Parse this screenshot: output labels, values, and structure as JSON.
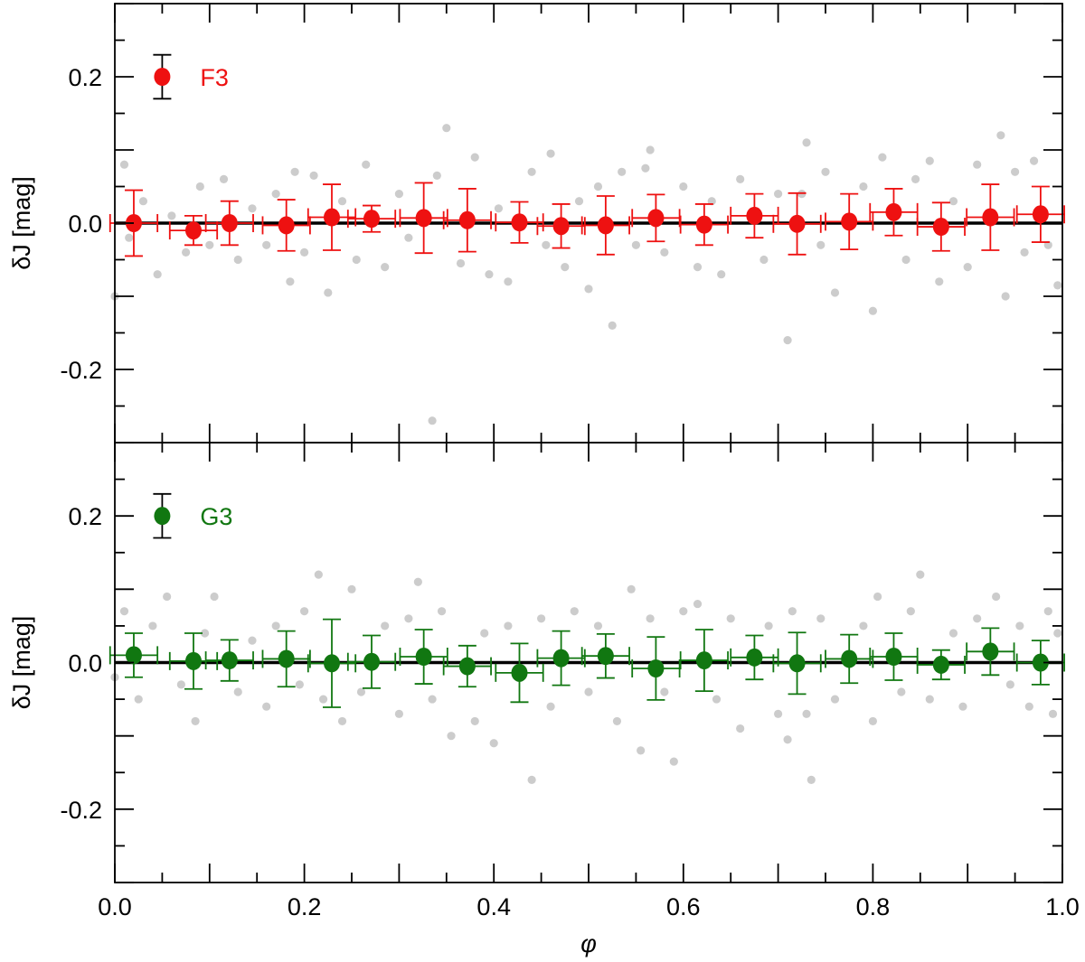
{
  "chart_data": [
    {
      "type": "scatter",
      "panel": "top",
      "ylabel": "δJ [mag]",
      "xlim": [
        0.0,
        1.0
      ],
      "ylim": [
        -0.3,
        0.3
      ],
      "yticks": [
        0.2,
        0.0,
        -0.2
      ],
      "ytick_labels": [
        "0.2",
        "0.0",
        "-0.2"
      ],
      "grid": false,
      "legend": {
        "position": "top-left",
        "label": "F3",
        "color": "#ee1111",
        "marker_value": 0.2,
        "marker_error": 0.03,
        "marker_phase": 0.05
      },
      "reference_line": 0.0,
      "background_color": "#cccccc",
      "binned_series": {
        "name": "F3",
        "color": "#ee1111",
        "x": [
          0.02,
          0.083,
          0.121,
          0.181,
          0.229,
          0.271,
          0.326,
          0.372,
          0.427,
          0.471,
          0.518,
          0.571,
          0.622,
          0.675,
          0.72,
          0.775,
          0.822,
          0.872,
          0.924,
          0.977
        ],
        "y": [
          0.0,
          -0.01,
          0.0,
          -0.003,
          0.008,
          0.006,
          0.007,
          0.004,
          0.001,
          -0.004,
          -0.003,
          0.007,
          -0.002,
          0.01,
          -0.001,
          0.002,
          0.015,
          -0.005,
          0.008,
          0.012
        ],
        "yerr": [
          0.045,
          0.02,
          0.03,
          0.035,
          0.045,
          0.018,
          0.048,
          0.043,
          0.028,
          0.03,
          0.04,
          0.032,
          0.028,
          0.03,
          0.042,
          0.038,
          0.032,
          0.033,
          0.045,
          0.038
        ],
        "xerr": [
          0.025,
          0.025,
          0.025,
          0.025,
          0.025,
          0.025,
          0.025,
          0.025,
          0.025,
          0.025,
          0.025,
          0.025,
          0.025,
          0.025,
          0.025,
          0.025,
          0.025,
          0.025,
          0.025,
          0.025
        ]
      },
      "scatter_points": [
        [
          0.0,
          -0.1
        ],
        [
          0.01,
          0.08
        ],
        [
          0.015,
          -0.02
        ],
        [
          0.03,
          0.03
        ],
        [
          0.045,
          -0.07
        ],
        [
          0.06,
          0.01
        ],
        [
          0.075,
          -0.04
        ],
        [
          0.09,
          0.05
        ],
        [
          0.1,
          -0.03
        ],
        [
          0.115,
          0.06
        ],
        [
          0.13,
          -0.05
        ],
        [
          0.145,
          0.02
        ],
        [
          0.16,
          -0.03
        ],
        [
          0.17,
          0.04
        ],
        [
          0.185,
          -0.08
        ],
        [
          0.19,
          0.07
        ],
        [
          0.2,
          -0.04
        ],
        [
          0.21,
          0.065
        ],
        [
          0.225,
          -0.095
        ],
        [
          0.24,
          0.03
        ],
        [
          0.255,
          -0.05
        ],
        [
          0.265,
          0.08
        ],
        [
          0.285,
          -0.06
        ],
        [
          0.3,
          0.04
        ],
        [
          0.31,
          -0.02
        ],
        [
          0.335,
          -0.27
        ],
        [
          0.34,
          0.065
        ],
        [
          0.35,
          0.13
        ],
        [
          0.365,
          -0.055
        ],
        [
          0.38,
          0.09
        ],
        [
          0.395,
          -0.07
        ],
        [
          0.405,
          0.02
        ],
        [
          0.415,
          -0.08
        ],
        [
          0.44,
          0.07
        ],
        [
          0.455,
          -0.03
        ],
        [
          0.46,
          0.095
        ],
        [
          0.475,
          -0.06
        ],
        [
          0.49,
          0.03
        ],
        [
          0.5,
          -0.09
        ],
        [
          0.51,
          0.05
        ],
        [
          0.525,
          -0.14
        ],
        [
          0.535,
          0.07
        ],
        [
          0.55,
          -0.03
        ],
        [
          0.56,
          0.075
        ],
        [
          0.565,
          0.1
        ],
        [
          0.58,
          -0.04
        ],
        [
          0.6,
          0.05
        ],
        [
          0.615,
          -0.06
        ],
        [
          0.63,
          0.03
        ],
        [
          0.64,
          -0.07
        ],
        [
          0.66,
          0.06
        ],
        [
          0.685,
          -0.05
        ],
        [
          0.7,
          0.04
        ],
        [
          0.71,
          -0.16
        ],
        [
          0.725,
          0.04
        ],
        [
          0.73,
          0.11
        ],
        [
          0.745,
          -0.03
        ],
        [
          0.75,
          0.07
        ],
        [
          0.76,
          -0.095
        ],
        [
          0.79,
          0.05
        ],
        [
          0.8,
          -0.12
        ],
        [
          0.81,
          0.09
        ],
        [
          0.835,
          -0.05
        ],
        [
          0.845,
          0.06
        ],
        [
          0.86,
          0.085
        ],
        [
          0.87,
          -0.08
        ],
        [
          0.885,
          0.03
        ],
        [
          0.9,
          -0.06
        ],
        [
          0.91,
          0.08
        ],
        [
          0.935,
          0.12
        ],
        [
          0.94,
          -0.1
        ],
        [
          0.95,
          0.07
        ],
        [
          0.96,
          -0.04
        ],
        [
          0.97,
          0.085
        ],
        [
          0.985,
          -0.03
        ],
        [
          0.995,
          -0.085
        ]
      ]
    },
    {
      "type": "scatter",
      "panel": "bottom",
      "xlabel": "φ",
      "ylabel": "δJ [mag]",
      "xlim": [
        0.0,
        1.0
      ],
      "ylim": [
        -0.3,
        0.3
      ],
      "xticks": [
        0.0,
        0.2,
        0.4,
        0.6,
        0.8,
        1.0
      ],
      "xtick_labels": [
        "0.0",
        "0.2",
        "0.4",
        "0.6",
        "0.8",
        "1.0"
      ],
      "yticks": [
        0.2,
        0.0,
        -0.2
      ],
      "ytick_labels": [
        "0.2",
        "0.0",
        "-0.2"
      ],
      "grid": false,
      "legend": {
        "position": "top-left",
        "label": "G3",
        "color": "#117711",
        "marker_value": 0.2,
        "marker_error": 0.03,
        "marker_phase": 0.05
      },
      "reference_line": 0.0,
      "background_color": "#cccccc",
      "binned_series": {
        "name": "G3",
        "color": "#117711",
        "x": [
          0.02,
          0.083,
          0.121,
          0.181,
          0.229,
          0.271,
          0.326,
          0.372,
          0.427,
          0.471,
          0.518,
          0.571,
          0.622,
          0.675,
          0.72,
          0.775,
          0.822,
          0.872,
          0.924,
          0.977
        ],
        "y": [
          0.01,
          0.002,
          0.003,
          0.005,
          -0.001,
          0.001,
          0.008,
          -0.005,
          -0.014,
          0.006,
          0.009,
          -0.008,
          0.003,
          0.007,
          -0.001,
          0.005,
          0.008,
          -0.003,
          0.015,
          0.0
        ],
        "yerr": [
          0.03,
          0.038,
          0.028,
          0.038,
          0.06,
          0.036,
          0.037,
          0.028,
          0.04,
          0.037,
          0.03,
          0.043,
          0.042,
          0.03,
          0.042,
          0.033,
          0.032,
          0.02,
          0.032,
          0.03
        ],
        "xerr": [
          0.025,
          0.025,
          0.025,
          0.025,
          0.025,
          0.025,
          0.025,
          0.025,
          0.025,
          0.025,
          0.025,
          0.025,
          0.025,
          0.025,
          0.025,
          0.025,
          0.025,
          0.025,
          0.025,
          0.025
        ]
      },
      "scatter_points": [
        [
          0.0,
          -0.02
        ],
        [
          0.01,
          0.07
        ],
        [
          0.025,
          -0.05
        ],
        [
          0.04,
          0.05
        ],
        [
          0.055,
          0.09
        ],
        [
          0.07,
          -0.03
        ],
        [
          0.085,
          -0.08
        ],
        [
          0.095,
          0.04
        ],
        [
          0.105,
          0.09
        ],
        [
          0.13,
          -0.04
        ],
        [
          0.145,
          0.03
        ],
        [
          0.16,
          -0.06
        ],
        [
          0.17,
          0.05
        ],
        [
          0.195,
          -0.03
        ],
        [
          0.2,
          0.07
        ],
        [
          0.215,
          0.12
        ],
        [
          0.22,
          -0.05
        ],
        [
          0.24,
          -0.08
        ],
        [
          0.25,
          0.1
        ],
        [
          0.26,
          -0.04
        ],
        [
          0.285,
          0.05
        ],
        [
          0.3,
          -0.07
        ],
        [
          0.31,
          0.06
        ],
        [
          0.32,
          0.11
        ],
        [
          0.335,
          -0.05
        ],
        [
          0.345,
          0.07
        ],
        [
          0.355,
          -0.1
        ],
        [
          0.38,
          -0.08
        ],
        [
          0.39,
          0.04
        ],
        [
          0.4,
          -0.11
        ],
        [
          0.415,
          0.05
        ],
        [
          0.44,
          -0.16
        ],
        [
          0.45,
          0.06
        ],
        [
          0.46,
          -0.06
        ],
        [
          0.485,
          0.07
        ],
        [
          0.5,
          -0.04
        ],
        [
          0.51,
          0.05
        ],
        [
          0.53,
          -0.08
        ],
        [
          0.545,
          0.1
        ],
        [
          0.555,
          -0.12
        ],
        [
          0.565,
          0.06
        ],
        [
          0.58,
          -0.04
        ],
        [
          0.59,
          -0.135
        ],
        [
          0.6,
          0.07
        ],
        [
          0.615,
          0.08
        ],
        [
          0.635,
          -0.05
        ],
        [
          0.65,
          0.06
        ],
        [
          0.66,
          -0.09
        ],
        [
          0.69,
          0.05
        ],
        [
          0.7,
          -0.07
        ],
        [
          0.71,
          -0.105
        ],
        [
          0.715,
          0.07
        ],
        [
          0.73,
          -0.07
        ],
        [
          0.735,
          -0.16
        ],
        [
          0.745,
          0.06
        ],
        [
          0.76,
          -0.05
        ],
        [
          0.79,
          0.05
        ],
        [
          0.8,
          -0.08
        ],
        [
          0.805,
          0.09
        ],
        [
          0.83,
          -0.04
        ],
        [
          0.84,
          0.07
        ],
        [
          0.85,
          0.12
        ],
        [
          0.86,
          -0.05
        ],
        [
          0.885,
          0.04
        ],
        [
          0.895,
          -0.06
        ],
        [
          0.91,
          0.06
        ],
        [
          0.93,
          0.09
        ],
        [
          0.945,
          -0.03
        ],
        [
          0.955,
          0.05
        ],
        [
          0.965,
          -0.06
        ],
        [
          0.985,
          0.07
        ],
        [
          0.99,
          -0.07
        ],
        [
          0.995,
          0.04
        ]
      ]
    }
  ]
}
